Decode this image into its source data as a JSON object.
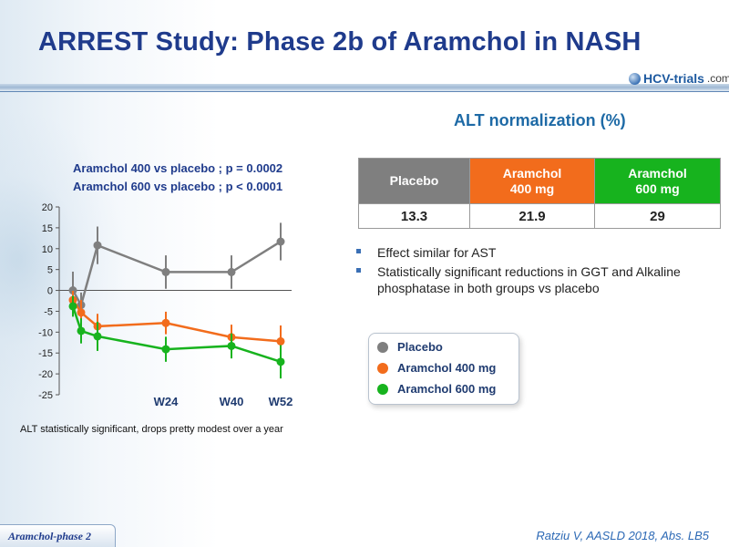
{
  "slide": {
    "title": "ARREST Study: Phase 2b of Aramchol in NASH",
    "logo": {
      "brand": "HCV-trials",
      "domain": ".com"
    },
    "alt_heading": "ALT normalization (%)",
    "table": {
      "headers": [
        [
          "Placebo"
        ],
        [
          "Aramchol",
          "400 mg"
        ],
        [
          "Aramchol",
          "600 mg"
        ]
      ],
      "values": [
        "13.3",
        "21.9",
        "29"
      ]
    },
    "bullets": [
      "Effect similar for AST",
      "Statistically significant reductions in GGT and Alkaline phosphatase in both groups vs placebo"
    ],
    "pvalue_lines": [
      "Aramchol 400 vs placebo ; p = 0.0002",
      "Aramchol 600 vs placebo ; p < 0.0001"
    ],
    "caption": "ALT statistically significant, drops pretty modest over a year",
    "footer_tag": "Aramchol-phase 2",
    "citation": "Ratziu V, AASLD 2018, Abs. LB5"
  },
  "colors": {
    "placebo": "#7f7f7f",
    "a400": "#f26c1c",
    "a600": "#17b31e",
    "title": "#1f3b8c"
  },
  "chart_data": {
    "type": "line",
    "ylim": [
      -25,
      20
    ],
    "yticks": [
      20,
      15,
      10,
      5,
      0,
      -5,
      -10,
      -15,
      -20,
      -25
    ],
    "x": [
      0,
      2,
      6,
      24,
      40,
      52
    ],
    "xlim": [
      0,
      52
    ],
    "xtick_labels": [
      {
        "x": 24,
        "label": "W24"
      },
      {
        "x": 40,
        "label": "W40"
      },
      {
        "x": 52,
        "label": "W52"
      }
    ],
    "series": [
      {
        "name": "Placebo",
        "color": "#7f7f7f",
        "values": [
          0,
          -3.5,
          10.8,
          4.4,
          4.4,
          11.7
        ],
        "err": [
          4.5,
          3,
          4.5,
          4,
          4,
          4.5
        ]
      },
      {
        "name": "Aramchol 400 mg",
        "color": "#f26c1c",
        "values": [
          -2.3,
          -5.3,
          -8.6,
          -7.8,
          -11.2,
          -12.2
        ],
        "err": [
          2.2,
          3,
          3,
          2.7,
          3,
          3.8
        ]
      },
      {
        "name": "Aramchol 600 mg",
        "color": "#17b31e",
        "values": [
          -3.8,
          -9.7,
          -11,
          -14.1,
          -13.3,
          -17.1
        ],
        "err": [
          2.5,
          3,
          3.5,
          3,
          3,
          4
        ]
      }
    ]
  }
}
